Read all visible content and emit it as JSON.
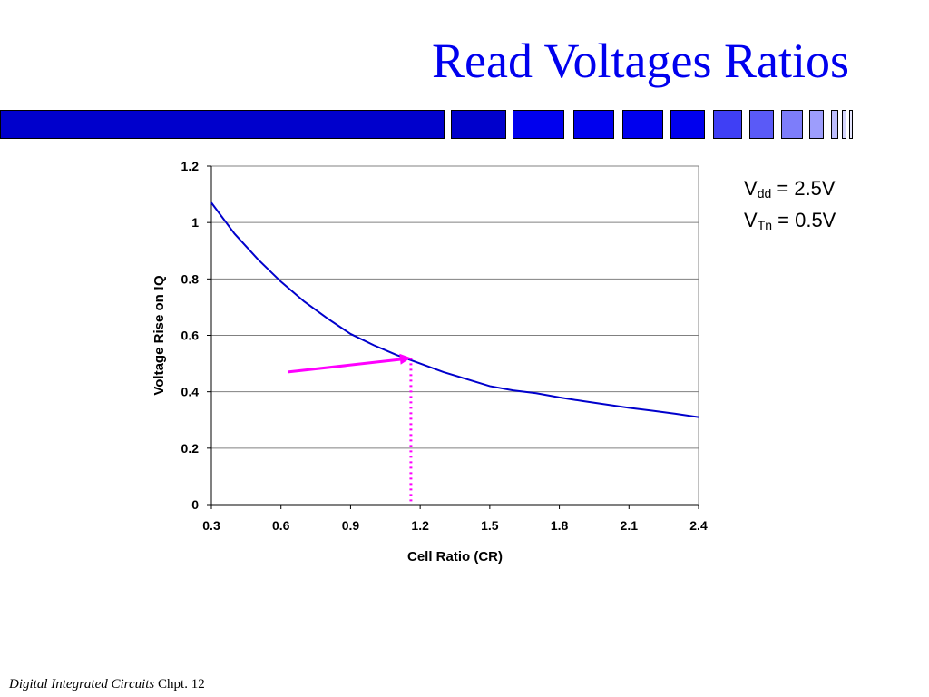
{
  "slide": {
    "title": "Read Voltages Ratios",
    "title_color": "#0000ee"
  },
  "params": {
    "vdd_symbol": "V",
    "vdd_sub": "dd",
    "vdd_value": " = 2.5V",
    "vtn_symbol": "V",
    "vtn_sub": "Tn",
    "vtn_value": " = 0.5V"
  },
  "footer": {
    "book": "Digital Integrated Circuits",
    "chapter": "Chpt. 12"
  },
  "chart_data": {
    "type": "line",
    "title": "",
    "xlabel": "Cell Ratio (CR)",
    "ylabel": "Voltage Rise on !Q",
    "xlim": [
      0.3,
      2.4
    ],
    "ylim": [
      0,
      1.2
    ],
    "x_ticks": [
      "0.3",
      "0.6",
      "0.9",
      "1.2",
      "1.5",
      "1.8",
      "2.1",
      "2.4"
    ],
    "y_ticks": [
      "0",
      "0.2",
      "0.4",
      "0.6",
      "0.8",
      "1",
      "1.2"
    ],
    "grid": "horizontal",
    "series": [
      {
        "color": "#0000cc",
        "x": [
          0.3,
          0.4,
          0.5,
          0.6,
          0.7,
          0.8,
          0.9,
          1.0,
          1.1,
          1.2,
          1.3,
          1.4,
          1.5,
          1.6,
          1.7,
          1.8,
          1.9,
          2.0,
          2.1,
          2.2,
          2.3,
          2.4
        ],
        "y": [
          1.07,
          0.96,
          0.87,
          0.79,
          0.72,
          0.66,
          0.605,
          0.565,
          0.53,
          0.5,
          0.47,
          0.445,
          0.42,
          0.405,
          0.395,
          0.38,
          0.367,
          0.355,
          0.343,
          0.333,
          0.322,
          0.31
        ]
      }
    ],
    "annotations": {
      "marker_color": "#ff00ff",
      "arrow": {
        "x1": 0.63,
        "y1": 0.47,
        "x2": 1.16,
        "y2": 0.52
      },
      "dotted_line": {
        "x": 1.16,
        "y1": 0.0,
        "y2": 0.52
      }
    }
  }
}
